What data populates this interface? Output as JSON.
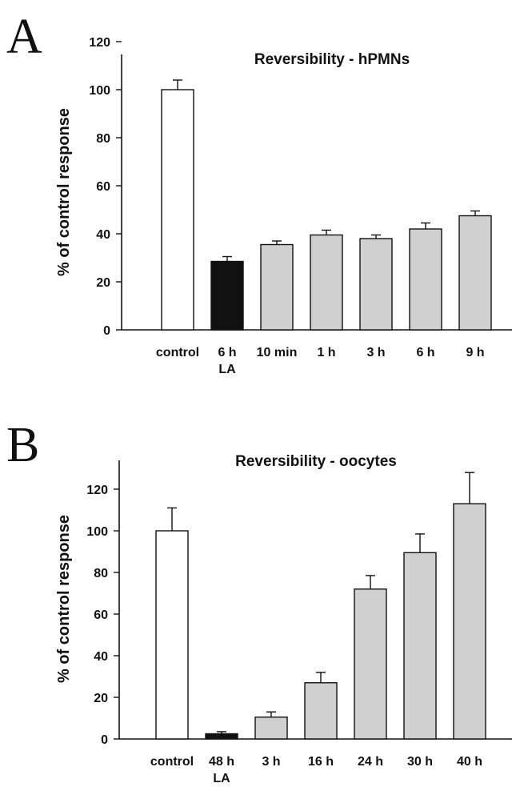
{
  "chart_data": [
    {
      "panel": "A",
      "type": "bar",
      "title": "Reversibility - hPMNs",
      "xlabel": "",
      "ylabel": "% of control response",
      "ylim": [
        0,
        120
      ],
      "yticks": [
        0,
        20,
        40,
        60,
        80,
        100,
        120
      ],
      "categories": [
        {
          "lines": [
            "control"
          ]
        },
        {
          "lines": [
            "6 h",
            "LA"
          ]
        },
        {
          "lines": [
            "10 min"
          ]
        },
        {
          "lines": [
            "1 h"
          ]
        },
        {
          "lines": [
            "3 h"
          ]
        },
        {
          "lines": [
            "6 h"
          ]
        },
        {
          "lines": [
            "9 h"
          ]
        }
      ],
      "values": [
        100,
        28.5,
        35.5,
        39.5,
        38,
        42,
        47.5
      ],
      "errors": [
        4,
        2,
        1.5,
        2,
        1.5,
        2.5,
        2
      ],
      "fills": [
        "#ffffff",
        "#111111",
        "#d0d0d0",
        "#d0d0d0",
        "#d0d0d0",
        "#d0d0d0",
        "#d0d0d0"
      ],
      "grid": false
    },
    {
      "panel": "B",
      "type": "bar",
      "title": "Reversibility - oocytes",
      "xlabel": "",
      "ylabel": "% of control response",
      "ylim": [
        0,
        130
      ],
      "yticks": [
        0,
        20,
        40,
        60,
        80,
        100,
        120
      ],
      "categories": [
        {
          "lines": [
            "control"
          ]
        },
        {
          "lines": [
            "48 h",
            "LA"
          ]
        },
        {
          "lines": [
            "3 h"
          ]
        },
        {
          "lines": [
            "16 h"
          ]
        },
        {
          "lines": [
            "24 h"
          ]
        },
        {
          "lines": [
            "30 h"
          ]
        },
        {
          "lines": [
            "40 h"
          ]
        }
      ],
      "values": [
        100,
        2.5,
        10.5,
        27,
        72,
        89.5,
        113
      ],
      "errors": [
        11,
        1,
        2.5,
        5,
        6.5,
        9,
        15
      ],
      "fills": [
        "#ffffff",
        "#111111",
        "#d0d0d0",
        "#d0d0d0",
        "#d0d0d0",
        "#d0d0d0",
        "#d0d0d0"
      ],
      "grid": false
    }
  ]
}
